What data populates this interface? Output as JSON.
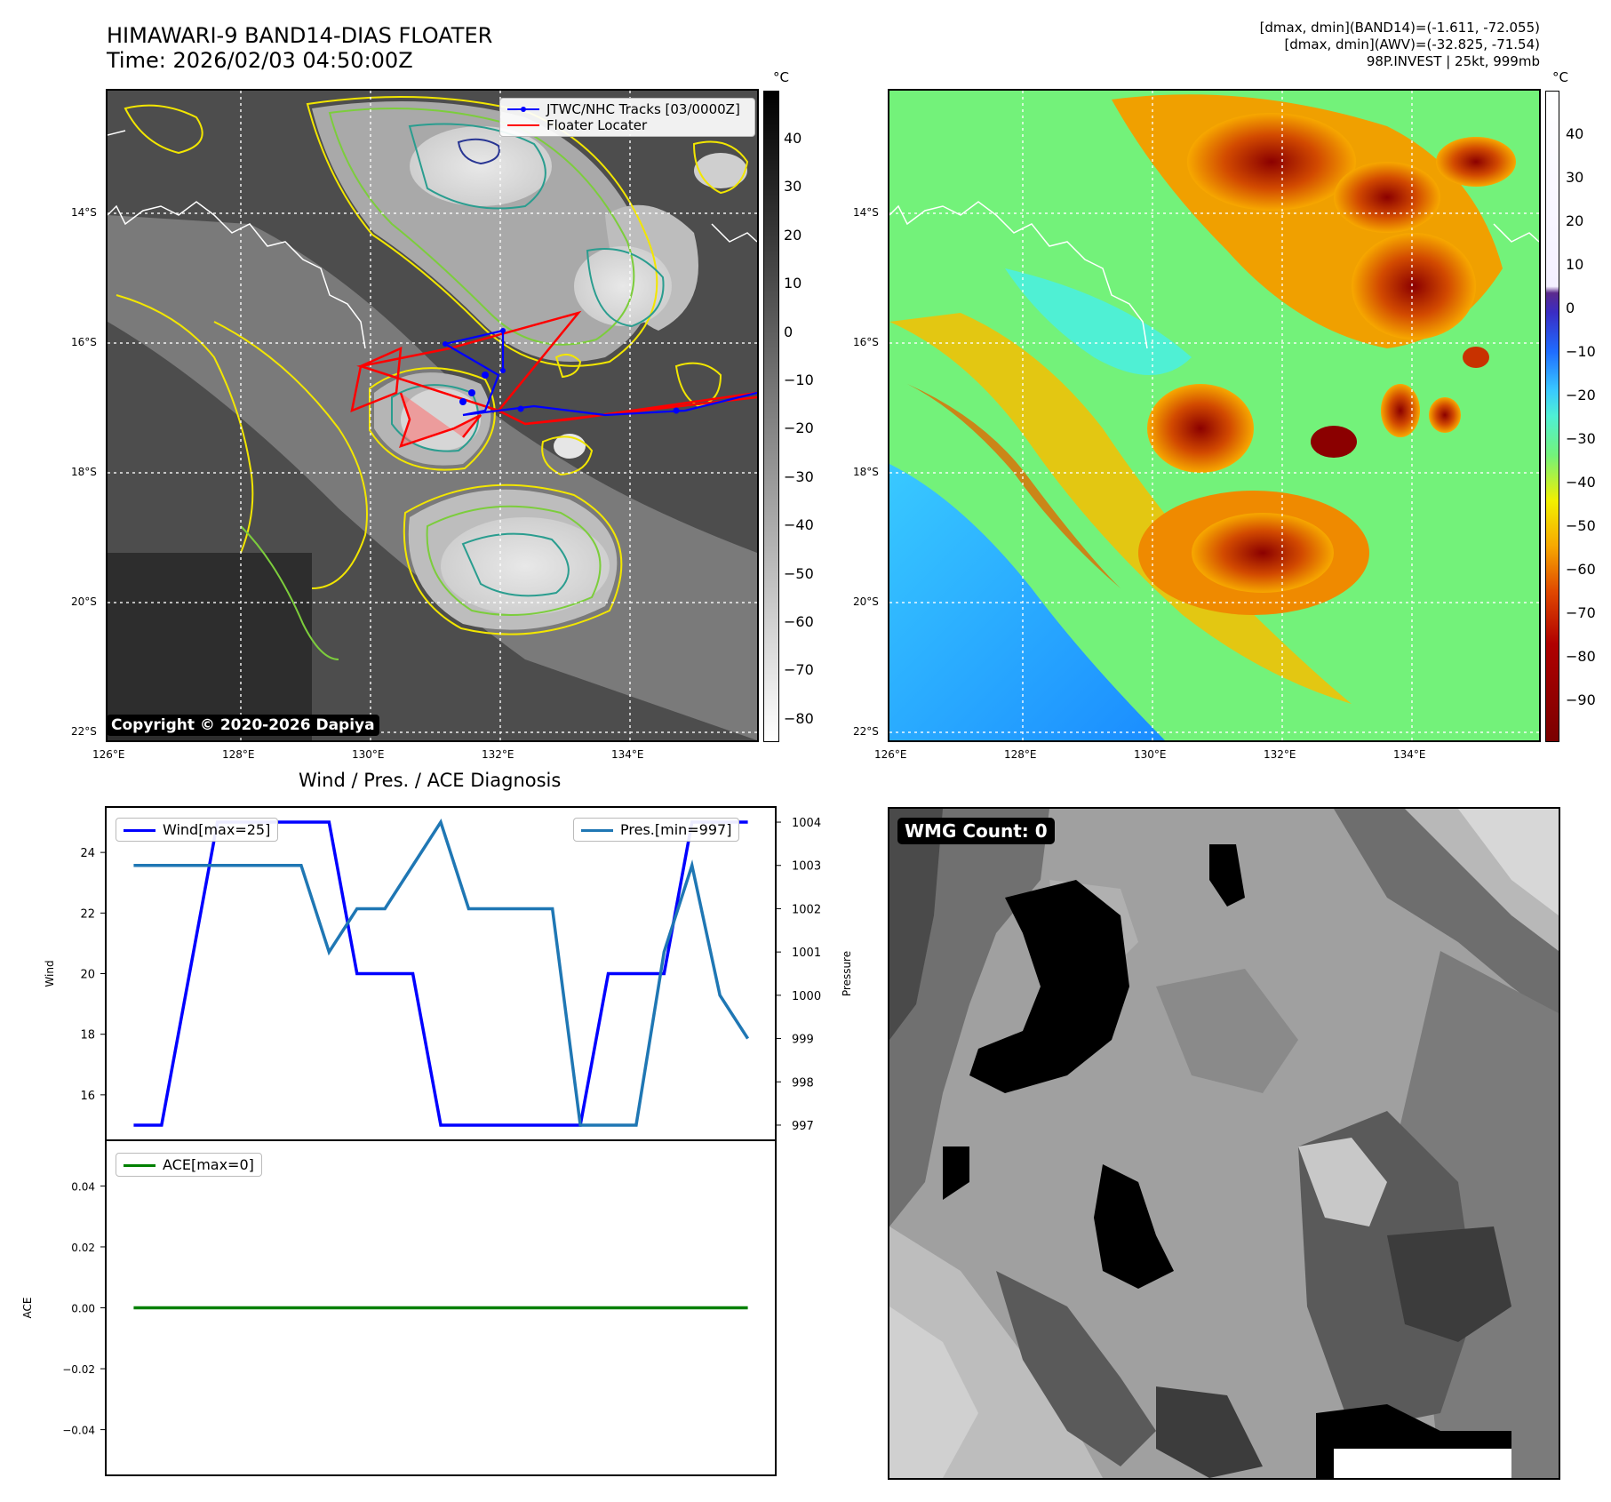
{
  "header": {
    "title_line1": "HIMAWARI-9 BAND14-DIAS FLOATER",
    "title_line2": "Time: 2026/02/03 04:50:00Z",
    "info_line1": "[dmax, dmin](BAND14)=(-1.611, -72.055)",
    "info_line2": "[dmax, dmin](AWV)=(-32.825, -71.54)",
    "info_line3": "98P.INVEST | 25kt, 999mb"
  },
  "maps": {
    "lat_labels": [
      "14°S",
      "16°S",
      "18°S",
      "20°S",
      "22°S"
    ],
    "lon_labels": [
      "126°E",
      "128°E",
      "130°E",
      "132°E",
      "134°E"
    ],
    "copyright": "Copyright © 2020-2026 Dapiya",
    "legend_track": "JTWC/NHC Tracks [03/0000Z]",
    "legend_floater": "Floater Locater",
    "track_color": "#0000ff",
    "floater_color": "#ff0000"
  },
  "colorbar_gray": {
    "unit": "°C",
    "ticks": [
      "40",
      "30",
      "20",
      "10",
      "0",
      "−10",
      "−20",
      "−30",
      "−40",
      "−50",
      "−60",
      "−70",
      "−80"
    ]
  },
  "colorbar_color": {
    "unit": "°C",
    "ticks": [
      "40",
      "30",
      "20",
      "10",
      "0",
      "−10",
      "−20",
      "−30",
      "−40",
      "−50",
      "−60",
      "−70",
      "−80",
      "−90"
    ]
  },
  "wmg": {
    "label": "WMG Count: 0"
  },
  "chart_data": [
    {
      "type": "line",
      "title": "Wind / Pres. / ACE Diagnosis",
      "x": [
        0,
        1,
        2,
        3,
        4,
        5,
        6,
        7,
        8,
        9,
        10,
        11,
        12,
        13,
        14,
        15,
        16,
        17,
        18,
        19,
        20,
        21,
        22
      ],
      "series": [
        {
          "name": "Wind[max=25]",
          "axis": "left",
          "color": "#0000ff",
          "values": [
            15,
            15,
            20,
            25,
            25,
            25,
            25,
            25,
            20,
            20,
            20,
            15,
            15,
            15,
            15,
            15,
            15,
            20,
            20,
            20,
            25,
            25,
            25
          ]
        },
        {
          "name": "Pres.[min=997]",
          "axis": "right",
          "color": "#1f77b4",
          "values": [
            1003,
            1003,
            1003,
            1003,
            1003,
            1003,
            1003,
            1001,
            1002,
            1002,
            1003,
            1004,
            1002,
            1002,
            1002,
            1002,
            997,
            997,
            997,
            1001,
            1003,
            1000,
            999
          ]
        }
      ],
      "ylabel": "Wind",
      "y2label": "Pressure",
      "yticks": [
        16,
        18,
        20,
        22,
        24
      ],
      "y2ticks": [
        997,
        998,
        999,
        1000,
        1001,
        1002,
        1003,
        1004
      ],
      "ylim": [
        14.5,
        25.5
      ],
      "y2lim": [
        996.65,
        1004.35
      ]
    },
    {
      "type": "line",
      "x": [
        0,
        22
      ],
      "series": [
        {
          "name": "ACE[max=0]",
          "color": "#008000",
          "values": [
            0,
            0
          ]
        }
      ],
      "ylabel": "ACE",
      "yticks": [
        "0.04",
        "0.02",
        "0.00",
        "−0.02",
        "−0.04"
      ],
      "ylim": [
        -0.055,
        0.055
      ]
    }
  ]
}
